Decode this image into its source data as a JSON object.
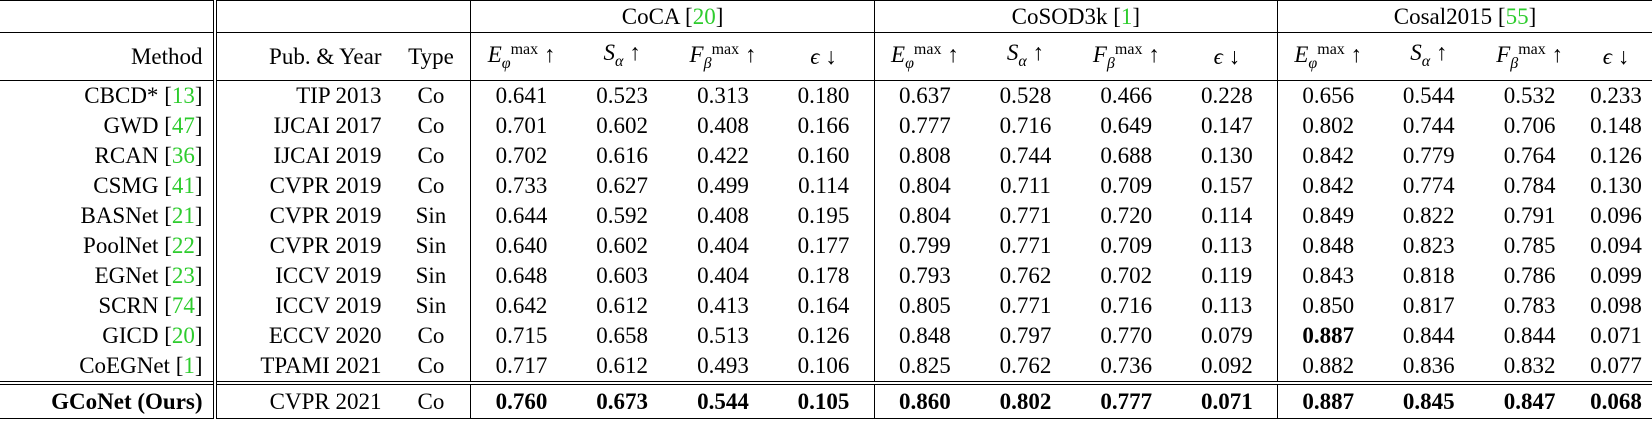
{
  "table": {
    "col_method": "Method",
    "col_pub": "Pub. & Year",
    "col_type": "Type",
    "groups": [
      {
        "name": "CoCA",
        "cite": "20"
      },
      {
        "name": "CoSOD3k",
        "cite": "1"
      },
      {
        "name": "Cosal2015",
        "cite": "55"
      }
    ],
    "metrics": [
      {
        "sym": "E",
        "sub": "φ",
        "sup": "max",
        "arrow": "↑"
      },
      {
        "sym": "S",
        "sub": "α",
        "sup": "",
        "arrow": "↑"
      },
      {
        "sym": "F",
        "sub": "β",
        "sup": "max",
        "arrow": "↑"
      },
      {
        "sym": "ϵ",
        "sub": "",
        "sup": "",
        "arrow": "↓"
      }
    ],
    "rows": [
      {
        "method": "CBCD*",
        "cite": "13",
        "pub": "TIP 2013",
        "type": "Co",
        "vals": [
          "0.641",
          "0.523",
          "0.313",
          "0.180",
          "0.637",
          "0.528",
          "0.466",
          "0.228",
          "0.656",
          "0.544",
          "0.532",
          "0.233"
        ],
        "bold": []
      },
      {
        "method": "GWD",
        "cite": "47",
        "pub": "IJCAI 2017",
        "type": "Co",
        "vals": [
          "0.701",
          "0.602",
          "0.408",
          "0.166",
          "0.777",
          "0.716",
          "0.649",
          "0.147",
          "0.802",
          "0.744",
          "0.706",
          "0.148"
        ],
        "bold": []
      },
      {
        "method": "RCAN",
        "cite": "36",
        "pub": "IJCAI 2019",
        "type": "Co",
        "vals": [
          "0.702",
          "0.616",
          "0.422",
          "0.160",
          "0.808",
          "0.744",
          "0.688",
          "0.130",
          "0.842",
          "0.779",
          "0.764",
          "0.126"
        ],
        "bold": []
      },
      {
        "method": "CSMG",
        "cite": "41",
        "pub": "CVPR 2019",
        "type": "Co",
        "vals": [
          "0.733",
          "0.627",
          "0.499",
          "0.114",
          "0.804",
          "0.711",
          "0.709",
          "0.157",
          "0.842",
          "0.774",
          "0.784",
          "0.130"
        ],
        "bold": []
      },
      {
        "method": "BASNet",
        "cite": "21",
        "pub": "CVPR 2019",
        "type": "Sin",
        "vals": [
          "0.644",
          "0.592",
          "0.408",
          "0.195",
          "0.804",
          "0.771",
          "0.720",
          "0.114",
          "0.849",
          "0.822",
          "0.791",
          "0.096"
        ],
        "bold": []
      },
      {
        "method": "PoolNet",
        "cite": "22",
        "pub": "CVPR 2019",
        "type": "Sin",
        "vals": [
          "0.640",
          "0.602",
          "0.404",
          "0.177",
          "0.799",
          "0.771",
          "0.709",
          "0.113",
          "0.848",
          "0.823",
          "0.785",
          "0.094"
        ],
        "bold": []
      },
      {
        "method": "EGNet",
        "cite": "23",
        "pub": "ICCV 2019",
        "type": "Sin",
        "vals": [
          "0.648",
          "0.603",
          "0.404",
          "0.178",
          "0.793",
          "0.762",
          "0.702",
          "0.119",
          "0.843",
          "0.818",
          "0.786",
          "0.099"
        ],
        "bold": []
      },
      {
        "method": "SCRN",
        "cite": "74",
        "pub": "ICCV 2019",
        "type": "Sin",
        "vals": [
          "0.642",
          "0.612",
          "0.413",
          "0.164",
          "0.805",
          "0.771",
          "0.716",
          "0.113",
          "0.850",
          "0.817",
          "0.783",
          "0.098"
        ],
        "bold": []
      },
      {
        "method": "GICD",
        "cite": "20",
        "pub": "ECCV 2020",
        "type": "Co",
        "vals": [
          "0.715",
          "0.658",
          "0.513",
          "0.126",
          "0.848",
          "0.797",
          "0.770",
          "0.079",
          "0.887",
          "0.844",
          "0.844",
          "0.071"
        ],
        "bold": [
          8
        ]
      },
      {
        "method": "CoEGNet",
        "cite": "1",
        "pub": "TPAMI 2021",
        "type": "Co",
        "vals": [
          "0.717",
          "0.612",
          "0.493",
          "0.106",
          "0.825",
          "0.762",
          "0.736",
          "0.092",
          "0.882",
          "0.836",
          "0.832",
          "0.077"
        ],
        "bold": []
      }
    ],
    "ours": {
      "method": "GCoNet (Ours)",
      "pub": "CVPR 2021",
      "type": "Co",
      "vals": [
        "0.760",
        "0.673",
        "0.544",
        "0.105",
        "0.860",
        "0.802",
        "0.777",
        "0.071",
        "0.887",
        "0.845",
        "0.847",
        "0.068"
      ]
    }
  }
}
